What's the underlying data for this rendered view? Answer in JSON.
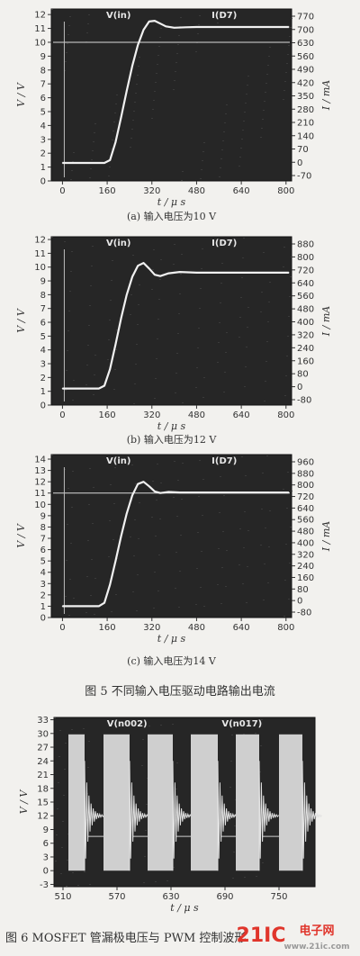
{
  "chart_data": [
    {
      "type": "line",
      "caption": "(a) 输入电压为10 V",
      "header_left": "V(in)",
      "header_right": "I(D7)",
      "xlabel": "t / μ s",
      "ylabel_left": "V / V",
      "ylabel_right": "I / mA",
      "xticks": [
        "0",
        "160",
        "320",
        "480",
        "640",
        "800"
      ],
      "yticks_left": [
        "0",
        "1",
        "2",
        "3",
        "4",
        "5",
        "6",
        "7",
        "8",
        "9",
        "10",
        "11",
        "12"
      ],
      "yticks_right": [
        "-70",
        "0",
        "70",
        "140",
        "210",
        "280",
        "350",
        "420",
        "490",
        "560",
        "630",
        "700",
        "770"
      ],
      "xlim": [
        -40,
        820
      ],
      "ylim": [
        0,
        12.4
      ],
      "hline": 10,
      "series": [
        {
          "x": [
            0,
            150,
            170,
            190,
            210,
            230,
            250,
            270,
            290,
            310,
            330,
            350,
            370,
            400,
            440,
            480,
            560,
            640,
            720,
            810
          ],
          "y": [
            1.3,
            1.3,
            1.5,
            2.8,
            4.6,
            6.5,
            8.3,
            9.8,
            10.9,
            11.5,
            11.55,
            11.35,
            11.15,
            11.05,
            11.08,
            11.1,
            11.1,
            11.1,
            11.1,
            11.1
          ]
        }
      ]
    },
    {
      "type": "line",
      "caption": "(b) 输入电压为12 V",
      "header_left": "V(in)",
      "header_right": "I(D7)",
      "xlabel": "t / μ s",
      "ylabel_left": "V / V",
      "ylabel_right": "I / mA",
      "xticks": [
        "0",
        "160",
        "320",
        "480",
        "640",
        "800"
      ],
      "yticks_left": [
        "0",
        "1",
        "2",
        "3",
        "4",
        "5",
        "6",
        "7",
        "8",
        "9",
        "10",
        "11",
        "12"
      ],
      "yticks_right": [
        "-80",
        "0",
        "80",
        "160",
        "240",
        "320",
        "400",
        "480",
        "560",
        "640",
        "720",
        "800",
        "880"
      ],
      "xlim": [
        -40,
        820
      ],
      "ylim": [
        0,
        12.2
      ],
      "hline": null,
      "series": [
        {
          "x": [
            0,
            130,
            150,
            170,
            190,
            210,
            230,
            250,
            270,
            290,
            310,
            330,
            350,
            380,
            420,
            480,
            560,
            640,
            720,
            810
          ],
          "y": [
            1.2,
            1.2,
            1.4,
            2.6,
            4.4,
            6.3,
            8.0,
            9.3,
            10.1,
            10.3,
            9.9,
            9.45,
            9.35,
            9.55,
            9.65,
            9.6,
            9.6,
            9.6,
            9.6,
            9.6
          ]
        }
      ]
    },
    {
      "type": "line",
      "caption": "(c) 输入电压为14 V",
      "header_left": "V(in)",
      "header_right": "I(D7)",
      "xlabel": "t / μ s",
      "ylabel_left": "V / V",
      "ylabel_right": "I / mA",
      "xticks": [
        "0",
        "160",
        "320",
        "480",
        "640",
        "800"
      ],
      "yticks_left": [
        "0",
        "1",
        "2",
        "3",
        "4",
        "5",
        "6",
        "7",
        "8",
        "9",
        "10",
        "11",
        "12",
        "13",
        "14"
      ],
      "yticks_right": [
        "-80",
        "0",
        "80",
        "160",
        "240",
        "320",
        "400",
        "480",
        "560",
        "640",
        "720",
        "800",
        "880",
        "960"
      ],
      "xlim": [
        -40,
        820
      ],
      "ylim": [
        0,
        14.4
      ],
      "hline": 11,
      "series": [
        {
          "x": [
            0,
            130,
            150,
            170,
            190,
            210,
            230,
            250,
            270,
            290,
            310,
            330,
            350,
            380,
            420,
            480,
            560,
            640,
            720,
            810
          ],
          "y": [
            1.0,
            1.0,
            1.3,
            2.9,
            5.0,
            7.2,
            9.2,
            10.8,
            11.8,
            12.0,
            11.6,
            11.15,
            11.0,
            11.1,
            11.05,
            11.05,
            11.05,
            11.05,
            11.05,
            11.05
          ]
        }
      ]
    },
    {
      "type": "line",
      "caption": "",
      "header_left": "V(n002)",
      "header_right": "V(n017)",
      "xlabel": "t / μ s",
      "ylabel_left": "V / V",
      "xticks": [
        "510",
        "570",
        "630",
        "690",
        "750"
      ],
      "xtick_values": [
        510,
        570,
        630,
        690,
        750
      ],
      "yticks_left": [
        "-3",
        "0",
        "3",
        "6",
        "9",
        "12",
        "15",
        "18",
        "21",
        "24",
        "27",
        "30",
        "33"
      ],
      "xlim": [
        500,
        790
      ],
      "ylim": [
        -3.5,
        33.5
      ],
      "pulses": [
        {
          "rise": 516,
          "fall": 534
        },
        {
          "rise": 555,
          "fall": 584
        },
        {
          "rise": 604,
          "fall": 632
        },
        {
          "rise": 652,
          "fall": 682
        },
        {
          "rise": 702,
          "fall": 728
        },
        {
          "rise": 750,
          "fall": 776
        }
      ],
      "pulse_high": 29.8,
      "gate_level": 7.5
    }
  ],
  "fig5_caption": "图 5   不同输入电压驱动电路输出电流",
  "fig6_caption": "图 6   MOSFET 管漏极电压与 PWM 控制波形",
  "watermark": {
    "brand": "21IC",
    "label": "电子网",
    "url": "www.21ic.com"
  },
  "colors": {
    "plot_bg": "#262626",
    "trace": "#f1f1f1",
    "hline": "#d9d9d9",
    "pulse_fill": "#cfcfcf",
    "watermark_red": "#e0352b"
  }
}
